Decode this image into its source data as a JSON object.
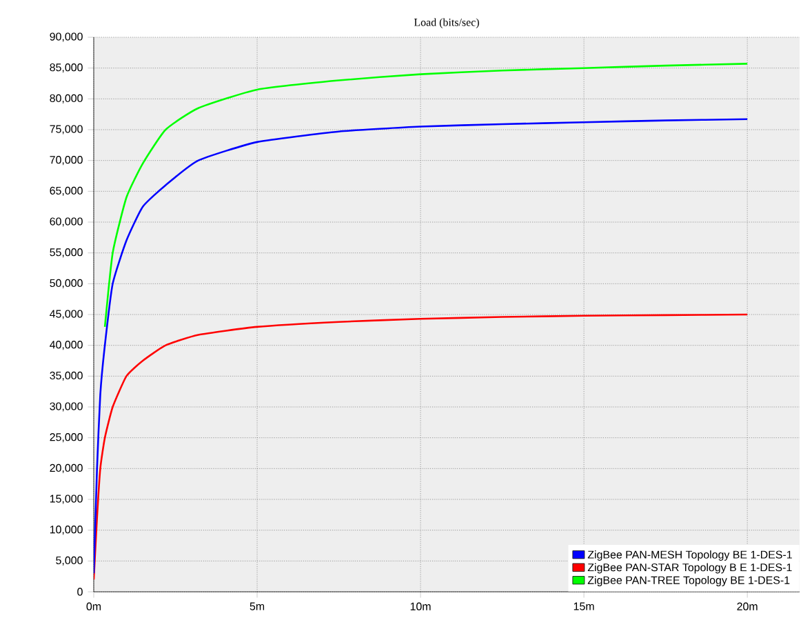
{
  "chart_data": {
    "type": "line",
    "title": "Load (bits/sec)",
    "xlim": [
      0,
      21.6
    ],
    "ylim": [
      0,
      90000
    ],
    "xticks": [
      {
        "value": 0,
        "label": "0m"
      },
      {
        "value": 5,
        "label": "5m"
      },
      {
        "value": 10,
        "label": "10m"
      },
      {
        "value": 15,
        "label": "15m"
      },
      {
        "value": 20,
        "label": "20m"
      }
    ],
    "yticks": [
      {
        "value": 0,
        "label": "0"
      },
      {
        "value": 5000,
        "label": "5,000"
      },
      {
        "value": 10000,
        "label": "10,000"
      },
      {
        "value": 15000,
        "label": "15,000"
      },
      {
        "value": 20000,
        "label": "20,000"
      },
      {
        "value": 25000,
        "label": "25,000"
      },
      {
        "value": 30000,
        "label": "30,000"
      },
      {
        "value": 35000,
        "label": "35,000"
      },
      {
        "value": 40000,
        "label": "40,000"
      },
      {
        "value": 45000,
        "label": "45,000"
      },
      {
        "value": 50000,
        "label": "50,000"
      },
      {
        "value": 55000,
        "label": "55,000"
      },
      {
        "value": 60000,
        "label": "60,000"
      },
      {
        "value": 65000,
        "label": "65,000"
      },
      {
        "value": 70000,
        "label": "70,000"
      },
      {
        "value": 75000,
        "label": "75,000"
      },
      {
        "value": 80000,
        "label": "80,000"
      },
      {
        "value": 85000,
        "label": "85,000"
      },
      {
        "value": 90000,
        "label": "90,000"
      }
    ],
    "grid": true,
    "legend": "bottom right",
    "x": [
      0,
      0.1,
      0.2,
      0.34,
      0.58,
      1.0,
      1.5,
      2.2,
      3.2,
      5,
      7.5,
      10,
      12.5,
      15,
      17.5,
      20
    ],
    "series": [
      {
        "name": "ZigBee PAN-MESH Topology BE 1-DES-1",
        "color": "#0000ff",
        "values": [
          3000,
          20000,
          32000,
          40000,
          50000,
          57000,
          62500,
          66000,
          70000,
          73000,
          74700,
          75500,
          75900,
          76200,
          76500,
          76700
        ]
      },
      {
        "name": "ZigBee PAN-STAR Topology B E 1-DES-1",
        "color": "#ff0000",
        "values": [
          2000,
          12000,
          20000,
          25000,
          30000,
          35000,
          37500,
          40000,
          41700,
          43000,
          43800,
          44300,
          44600,
          44800,
          44900,
          45000
        ]
      },
      {
        "name": "ZigBee PAN-TREE Topology BE 1-DES-1",
        "color": "#00ff00",
        "values": [
          null,
          null,
          null,
          43000,
          55000,
          64000,
          69500,
          75000,
          78500,
          81500,
          83000,
          84000,
          84600,
          85000,
          85400,
          85700
        ]
      }
    ]
  }
}
